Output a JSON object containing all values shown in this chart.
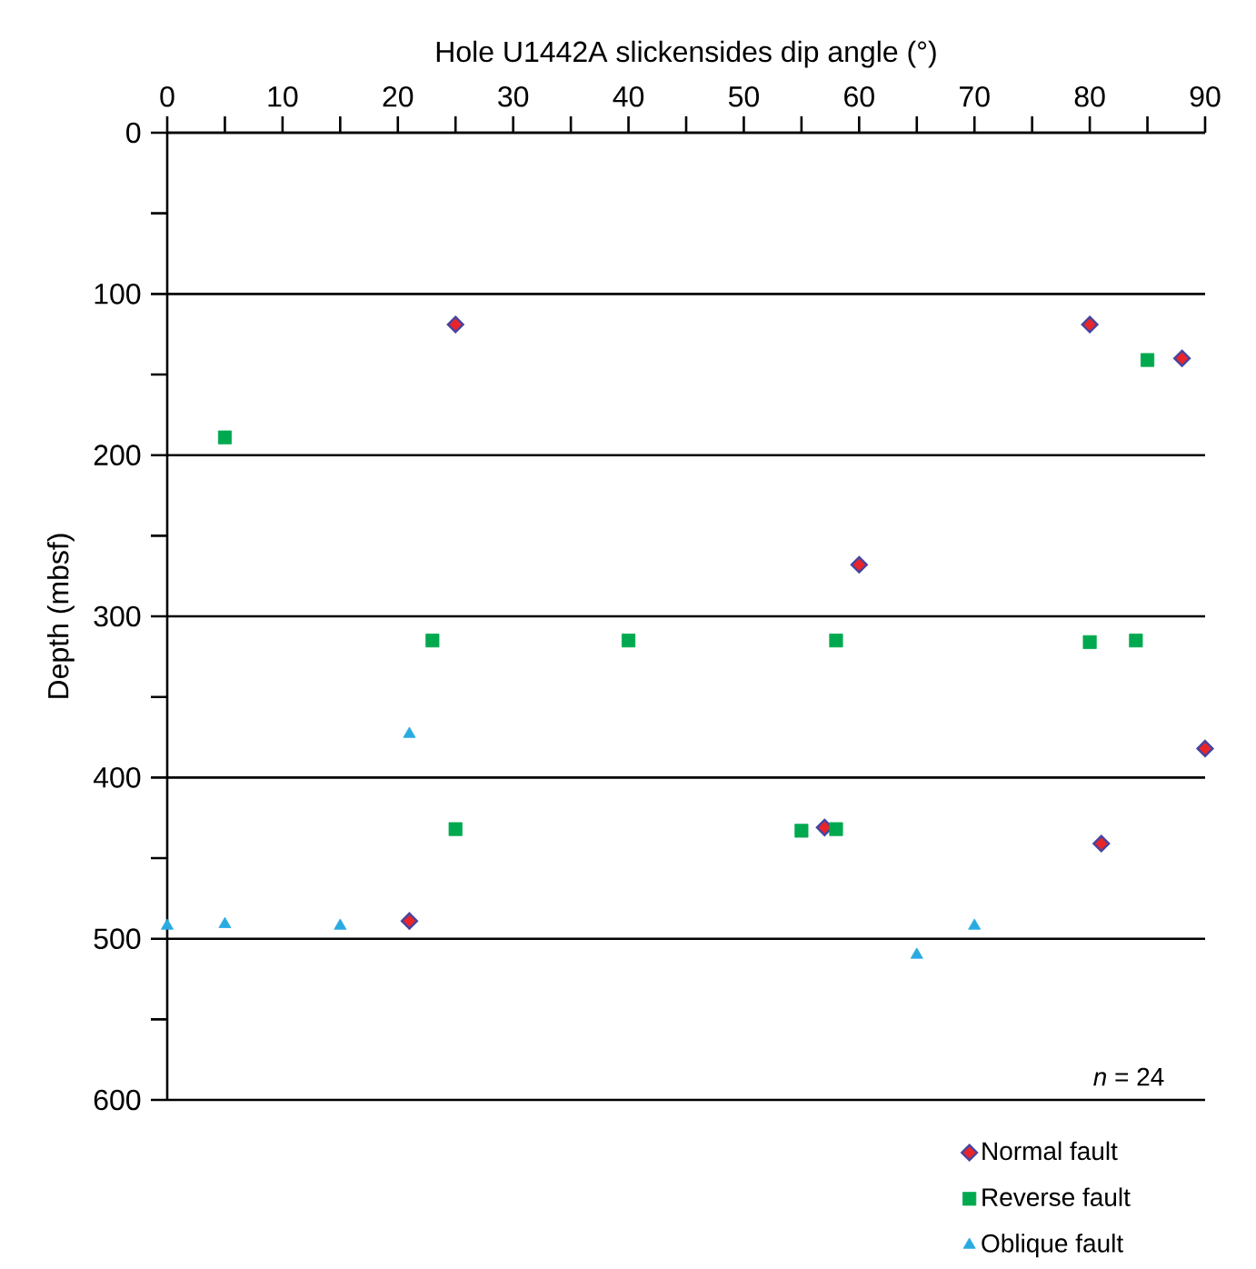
{
  "chart_data": {
    "type": "scatter",
    "xlabel": "Hole U1442A slickensides dip angle (°)",
    "ylabel": "Depth (mbsf)",
    "xlim": [
      0,
      90
    ],
    "ylim": [
      600,
      0
    ],
    "xticks": [
      0,
      {
        "value": 5,
        "label": null
      },
      10,
      {
        "value": 15,
        "label": null
      },
      20,
      {
        "value": 25,
        "label": null
      },
      30,
      {
        "value": 35,
        "label": null
      },
      40,
      {
        "value": 45,
        "label": null
      },
      50,
      {
        "value": 55,
        "label": null
      },
      60,
      {
        "value": 65,
        "label": null
      },
      70,
      {
        "value": 75,
        "label": null
      },
      80,
      {
        "value": 85,
        "label": null
      },
      90
    ],
    "yticks": [
      0,
      {
        "value": 50,
        "label": null
      },
      100,
      {
        "value": 150,
        "label": null
      },
      200,
      {
        "value": 250,
        "label": null
      },
      300,
      {
        "value": 350,
        "label": null
      },
      400,
      {
        "value": 450,
        "label": null
      },
      500,
      {
        "value": 550,
        "label": null
      },
      600
    ],
    "grid": "y",
    "legend": "bottom right",
    "annotations": [
      "*n* = 24"
    ],
    "series": [
      {
        "name": "Normal fault",
        "color": "#e8252a",
        "marker": "diamond",
        "x": [
          25,
          80,
          88,
          60,
          90,
          57,
          81,
          21
        ],
        "values": [
          119,
          119,
          140,
          268,
          382,
          431,
          441,
          489
        ]
      },
      {
        "name": "Reverse fault",
        "color": "#00a94f",
        "marker": "square",
        "x": [
          5,
          85,
          23,
          40,
          58,
          80,
          84,
          25,
          55,
          58
        ],
        "values": [
          189,
          141,
          315,
          315,
          315,
          316,
          315,
          432,
          433,
          432
        ]
      },
      {
        "name": "Oblique fault",
        "color": "#29abe2",
        "marker": "triangle",
        "x": [
          0,
          5,
          15,
          21,
          65,
          70
        ],
        "values": [
          492,
          491,
          492,
          373,
          510,
          492
        ]
      }
    ]
  }
}
